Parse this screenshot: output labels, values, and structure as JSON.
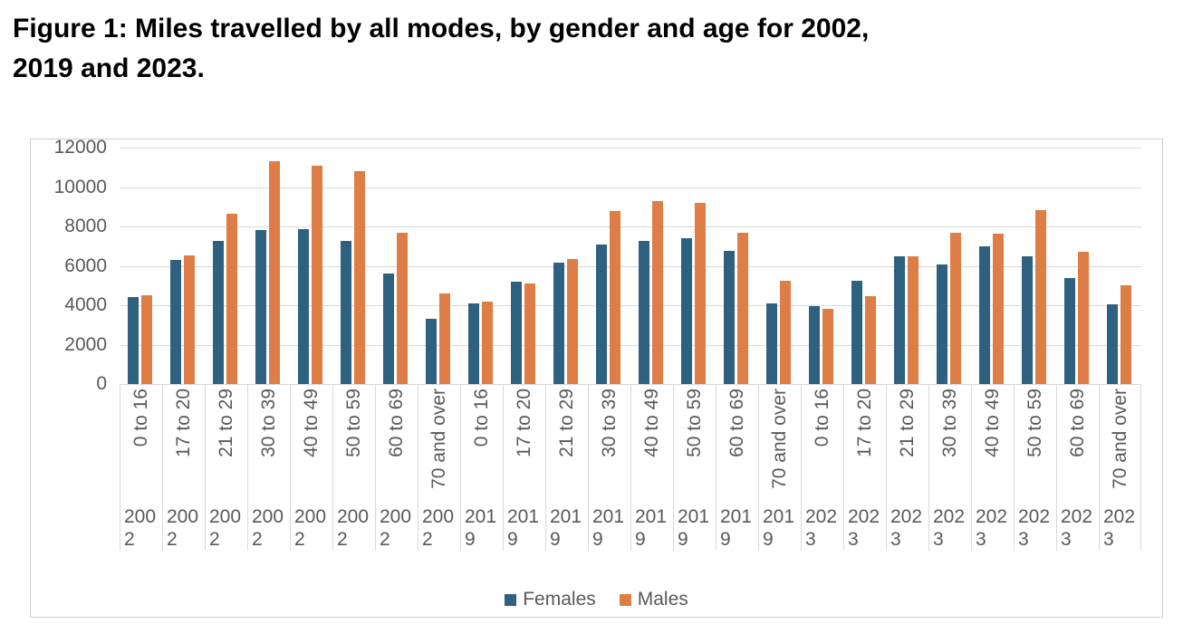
{
  "title": {
    "text": "Figure 1: Miles travelled by all modes, by gender and age for 2002, 2019 and 2023.",
    "line1": "Figure 1: Miles travelled by all modes, by gender and age for 2002,",
    "line2": "2019 and 2023."
  },
  "colors": {
    "females": "#2d617f",
    "males": "#de7d45",
    "gridline": "#d9d9d9",
    "axis_text": "#595959",
    "chart_border": "#d0cece",
    "background": "#ffffff"
  },
  "chart_data": {
    "type": "bar",
    "title": "Figure 1: Miles travelled by all modes, by gender and age for 2002, 2019 and 2023.",
    "xlabel": "",
    "ylabel": "",
    "ylim": [
      0,
      12000
    ],
    "yticks": [
      0,
      2000,
      4000,
      6000,
      8000,
      10000,
      12000
    ],
    "grid": true,
    "legend_position": "bottom",
    "age_groups": [
      "0 to 16",
      "17 to 20",
      "21 to 29",
      "30 to 39",
      "40 to 49",
      "50 to 59",
      "60 to 69",
      "70 and over"
    ],
    "years": [
      "2002",
      "2019",
      "2023"
    ],
    "categories": [
      {
        "age": "0 to 16",
        "year": "2002"
      },
      {
        "age": "17 to 20",
        "year": "2002"
      },
      {
        "age": "21 to 29",
        "year": "2002"
      },
      {
        "age": "30 to 39",
        "year": "2002"
      },
      {
        "age": "40 to 49",
        "year": "2002"
      },
      {
        "age": "50 to 59",
        "year": "2002"
      },
      {
        "age": "60 to 69",
        "year": "2002"
      },
      {
        "age": "70 and over",
        "year": "2002"
      },
      {
        "age": "0 to 16",
        "year": "2019"
      },
      {
        "age": "17 to 20",
        "year": "2019"
      },
      {
        "age": "21 to 29",
        "year": "2019"
      },
      {
        "age": "30 to 39",
        "year": "2019"
      },
      {
        "age": "40 to 49",
        "year": "2019"
      },
      {
        "age": "50 to 59",
        "year": "2019"
      },
      {
        "age": "60 to 69",
        "year": "2019"
      },
      {
        "age": "70 and over",
        "year": "2019"
      },
      {
        "age": "0 to 16",
        "year": "2023"
      },
      {
        "age": "17 to 20",
        "year": "2023"
      },
      {
        "age": "21 to 29",
        "year": "2023"
      },
      {
        "age": "30 to 39",
        "year": "2023"
      },
      {
        "age": "40 to 49",
        "year": "2023"
      },
      {
        "age": "50 to 59",
        "year": "2023"
      },
      {
        "age": "60 to 69",
        "year": "2023"
      },
      {
        "age": "70 and over",
        "year": "2023"
      }
    ],
    "series": [
      {
        "name": "Females",
        "color": "#2d617f",
        "values": [
          4400,
          6300,
          7250,
          7800,
          7850,
          7250,
          5600,
          3300,
          4100,
          5200,
          6150,
          7100,
          7250,
          7400,
          6750,
          4100,
          3950,
          5250,
          6500,
          6050,
          7000,
          6500,
          5400,
          4050
        ]
      },
      {
        "name": "Males",
        "color": "#de7d45",
        "values": [
          4500,
          6550,
          8650,
          11300,
          11100,
          10800,
          7700,
          4600,
          4200,
          5100,
          6350,
          8800,
          9300,
          9200,
          7700,
          5250,
          3800,
          4450,
          6500,
          7700,
          7650,
          8850,
          6700,
          5000
        ]
      }
    ]
  }
}
